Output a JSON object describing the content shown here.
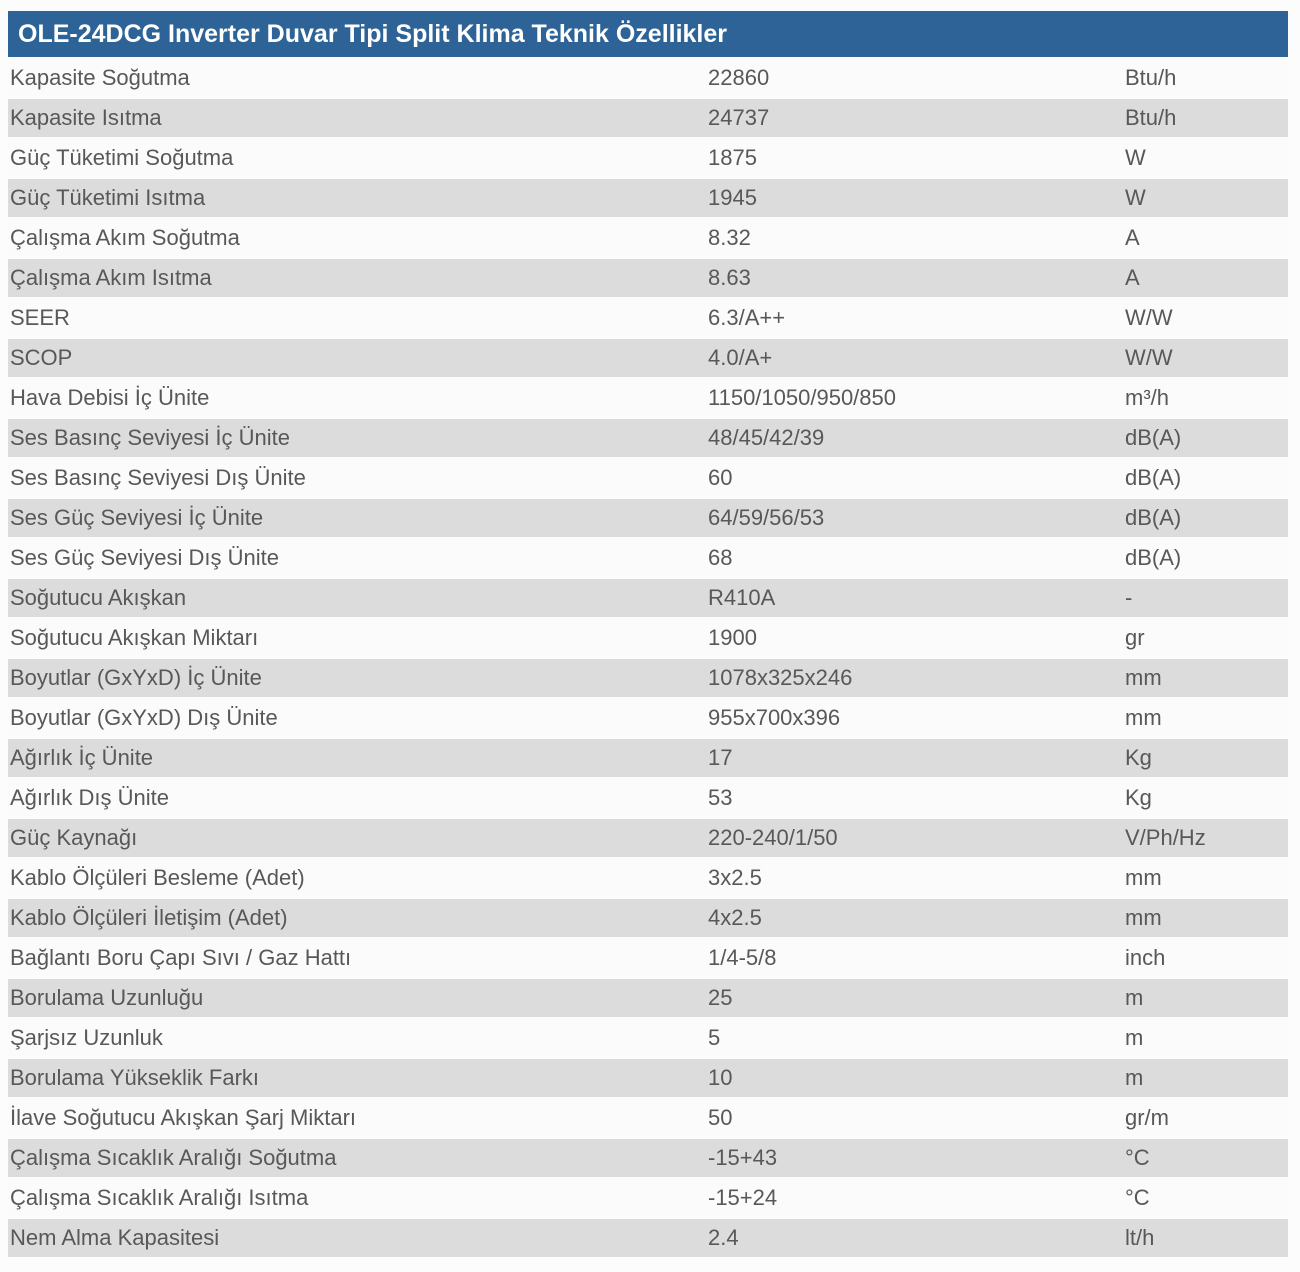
{
  "table": {
    "title": "OLE-24DCG Inverter Duvar Tipi Split Klima Teknik Özellikler",
    "colors": {
      "header_bg": "#2d6396",
      "header_text": "#ffffff",
      "row_bg": "#fbfbfb",
      "row_alt_bg": "#dcdcdc",
      "text": "#58585a"
    },
    "rows": [
      {
        "label": "Kapasite Soğutma",
        "value": "22860",
        "unit": "Btu/h"
      },
      {
        "label": "Kapasite Isıtma",
        "value": "24737",
        "unit": "Btu/h"
      },
      {
        "label": "Güç Tüketimi Soğutma",
        "value": "1875",
        "unit": "W"
      },
      {
        "label": "Güç Tüketimi Isıtma",
        "value": "1945",
        "unit": "W"
      },
      {
        "label": "Çalışma Akım Soğutma",
        "value": "8.32",
        "unit": "A"
      },
      {
        "label": "Çalışma Akım Isıtma",
        "value": "8.63",
        "unit": "A"
      },
      {
        "label": "SEER",
        "value": "6.3/A++",
        "unit": "W/W"
      },
      {
        "label": "SCOP",
        "value": "4.0/A+",
        "unit": "W/W"
      },
      {
        "label": "Hava Debisi İç Ünite",
        "value": "1150/1050/950/850",
        "unit": "m³/h"
      },
      {
        "label": "Ses Basınç Seviyesi İç Ünite",
        "value": "48/45/42/39",
        "unit": "dB(A)"
      },
      {
        "label": "Ses Basınç Seviyesi Dış Ünite",
        "value": "60",
        "unit": "dB(A)"
      },
      {
        "label": "Ses Güç Seviyesi İç Ünite",
        "value": "64/59/56/53",
        "unit": "dB(A)"
      },
      {
        "label": "Ses Güç Seviyesi Dış Ünite",
        "value": "68",
        "unit": "dB(A)"
      },
      {
        "label": "Soğutucu Akışkan",
        "value": "R410A",
        "unit": "-"
      },
      {
        "label": "Soğutucu Akışkan Miktarı",
        "value": "1900",
        "unit": "gr"
      },
      {
        "label": "Boyutlar (GxYxD) İç Ünite",
        "value": "1078x325x246",
        "unit": "mm"
      },
      {
        "label": "Boyutlar (GxYxD) Dış Ünite",
        "value": "955x700x396",
        "unit": "mm"
      },
      {
        "label": "Ağırlık İç Ünite",
        "value": "17",
        "unit": "Kg"
      },
      {
        "label": "Ağırlık Dış Ünite",
        "value": "53",
        "unit": "Kg"
      },
      {
        "label": "Güç Kaynağı",
        "value": "220-240/1/50",
        "unit": "V/Ph/Hz"
      },
      {
        "label": "Kablo Ölçüleri Besleme (Adet)",
        "value": "3x2.5",
        "unit": "mm"
      },
      {
        "label": "Kablo Ölçüleri İletişim (Adet)",
        "value": "4x2.5",
        "unit": "mm"
      },
      {
        "label": "Bağlantı Boru Çapı Sıvı / Gaz Hattı",
        "value": "1/4-5/8",
        "unit": "inch"
      },
      {
        "label": "Borulama Uzunluğu",
        "value": "25",
        "unit": "m"
      },
      {
        "label": "Şarjsız Uzunluk",
        "value": "5",
        "unit": "m"
      },
      {
        "label": "Borulama Yükseklik Farkı",
        "value": "10",
        "unit": "m"
      },
      {
        "label": "İlave Soğutucu Akışkan Şarj Miktarı",
        "value": "50",
        "unit": "gr/m"
      },
      {
        "label": "Çalışma Sıcaklık Aralığı Soğutma",
        "value": "-15+43",
        "unit": "°C"
      },
      {
        "label": "Çalışma Sıcaklık Aralığı Isıtma",
        "value": "-15+24",
        "unit": "°C"
      },
      {
        "label": "Nem Alma Kapasitesi",
        "value": "2.4",
        "unit": "lt/h"
      }
    ]
  }
}
